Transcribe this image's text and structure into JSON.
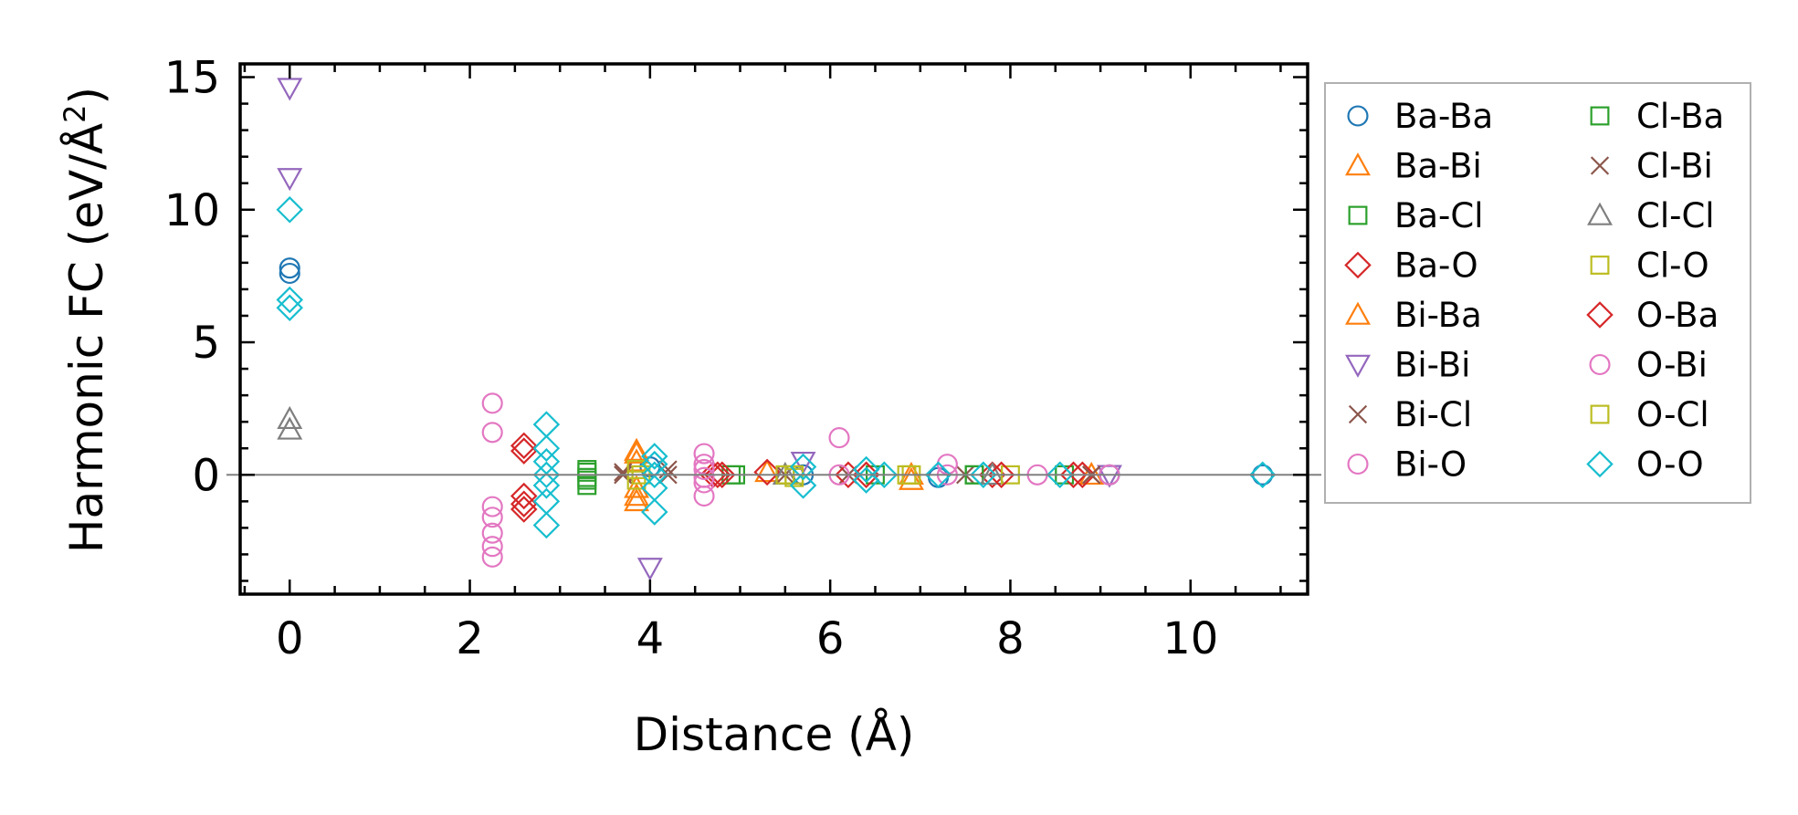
{
  "chart_data": {
    "type": "scatter",
    "xlabel": "Distance (Å)",
    "ylabel_main": "Harmonic FC (eV/Å",
    "ylabel_sup": "2",
    "ylabel_end": ")",
    "xlim": [
      -0.55,
      11.3
    ],
    "ylim": [
      -4.5,
      15.5
    ],
    "xticks": [
      0,
      2,
      4,
      6,
      8,
      10
    ],
    "xtick_labels": [
      "0",
      "2",
      "4",
      "6",
      "8",
      "10"
    ],
    "yticks": [
      0,
      5,
      10,
      15
    ],
    "ytick_labels": [
      "0",
      "5",
      "10",
      "15"
    ],
    "grid": false,
    "zero_line": true,
    "legend_position": "outside-right",
    "series": [
      {
        "name": "Ba-Ba",
        "marker": "circle",
        "color": "#1f77b4",
        "points": [
          [
            0,
            7.8
          ],
          [
            0,
            7.6
          ],
          [
            4.0,
            0.3
          ],
          [
            5.7,
            0.0
          ],
          [
            7.2,
            -0.1
          ],
          [
            9.1,
            0.0
          ],
          [
            10.8,
            0.0
          ]
        ]
      },
      {
        "name": "Ba-Bi",
        "marker": "triangle-up",
        "color": "#ff7f0e",
        "points": [
          [
            3.85,
            0.9
          ],
          [
            3.85,
            0.5
          ],
          [
            3.85,
            -0.5
          ],
          [
            3.85,
            -1.0
          ],
          [
            5.3,
            0.1
          ],
          [
            6.9,
            -0.2
          ],
          [
            8.9,
            0.0
          ]
        ]
      },
      {
        "name": "Ba-Cl",
        "marker": "square",
        "color": "#2ca02c",
        "points": [
          [
            3.3,
            0.2
          ],
          [
            3.3,
            -0.2
          ],
          [
            4.9,
            0.0
          ],
          [
            6.5,
            0.0
          ],
          [
            7.6,
            0.0
          ],
          [
            8.6,
            0.0
          ]
        ]
      },
      {
        "name": "Ba-O",
        "marker": "diamond",
        "color": "#d62728",
        "points": [
          [
            2.6,
            1.1
          ],
          [
            2.6,
            -0.8
          ],
          [
            2.6,
            -1.1
          ],
          [
            4.7,
            0.0
          ],
          [
            5.3,
            0.1
          ],
          [
            6.4,
            0.0
          ],
          [
            7.8,
            0.0
          ],
          [
            8.8,
            0.0
          ]
        ]
      },
      {
        "name": "Bi-Ba",
        "marker": "triangle-up",
        "color": "#ff7f0e",
        "points": [
          [
            3.85,
            0.8
          ],
          [
            3.85,
            -0.8
          ],
          [
            6.9,
            0.0
          ]
        ]
      },
      {
        "name": "Bi-Bi",
        "marker": "triangle-down",
        "color": "#9467bd",
        "points": [
          [
            0,
            14.6
          ],
          [
            0,
            11.2
          ],
          [
            4.0,
            -3.5
          ],
          [
            5.7,
            0.5
          ],
          [
            9.1,
            0.0
          ]
        ]
      },
      {
        "name": "Bi-Cl",
        "marker": "x",
        "color": "#8c564b",
        "points": [
          [
            3.7,
            0.1
          ],
          [
            4.2,
            0.2
          ],
          [
            5.5,
            0.0
          ],
          [
            7.5,
            0.0
          ],
          [
            8.9,
            0.0
          ]
        ]
      },
      {
        "name": "Bi-O",
        "marker": "circle",
        "color": "#e377c2",
        "points": [
          [
            2.25,
            2.7
          ],
          [
            2.25,
            1.6
          ],
          [
            2.25,
            -1.2
          ],
          [
            2.25,
            -1.6
          ],
          [
            2.25,
            -2.2
          ],
          [
            2.25,
            -2.7
          ],
          [
            2.25,
            -3.1
          ],
          [
            4.6,
            0.8
          ],
          [
            4.6,
            0.4
          ],
          [
            4.6,
            -0.3
          ],
          [
            4.6,
            -0.8
          ],
          [
            6.1,
            1.4
          ],
          [
            7.3,
            0.4
          ],
          [
            8.3,
            0.0
          ]
        ]
      },
      {
        "name": "Cl-Ba",
        "marker": "square",
        "color": "#2ca02c",
        "points": [
          [
            3.3,
            0.1
          ],
          [
            3.3,
            -0.1
          ],
          [
            3.3,
            -0.4
          ],
          [
            4.95,
            0.0
          ],
          [
            7.6,
            0.0
          ]
        ]
      },
      {
        "name": "Cl-Bi",
        "marker": "x",
        "color": "#8c564b",
        "points": [
          [
            3.7,
            0.0
          ],
          [
            4.2,
            0.0
          ],
          [
            6.2,
            0.0
          ],
          [
            8.9,
            0.0
          ]
        ]
      },
      {
        "name": "Cl-Cl",
        "marker": "triangle-up",
        "color": "#7f7f7f",
        "points": [
          [
            0,
            2.1
          ],
          [
            0,
            1.7
          ],
          [
            5.5,
            0.0
          ],
          [
            7.8,
            0.0
          ]
        ]
      },
      {
        "name": "Cl-O",
        "marker": "square",
        "color": "#bcbd22",
        "points": [
          [
            3.85,
            0.2
          ],
          [
            3.85,
            -0.2
          ],
          [
            5.5,
            0.0
          ],
          [
            5.6,
            -0.1
          ],
          [
            6.9,
            0.0
          ],
          [
            8.0,
            0.0
          ]
        ]
      },
      {
        "name": "O-Ba",
        "marker": "diamond",
        "color": "#d62728",
        "points": [
          [
            2.6,
            0.9
          ],
          [
            2.6,
            -1.3
          ],
          [
            4.75,
            0.0
          ],
          [
            4.8,
            0.0
          ],
          [
            6.2,
            0.0
          ],
          [
            7.9,
            0.0
          ],
          [
            8.7,
            0.0
          ]
        ]
      },
      {
        "name": "O-Bi",
        "marker": "circle",
        "color": "#e377c2",
        "points": [
          [
            4.6,
            0.2
          ],
          [
            4.6,
            -0.1
          ],
          [
            6.1,
            0.0
          ],
          [
            7.3,
            0.0
          ],
          [
            9.1,
            0.0
          ]
        ]
      },
      {
        "name": "O-Cl",
        "marker": "square",
        "color": "#bcbd22",
        "points": [
          [
            3.9,
            0.0
          ],
          [
            5.6,
            0.0
          ],
          [
            6.85,
            0.0
          ]
        ]
      },
      {
        "name": "O-O",
        "marker": "diamond",
        "color": "#17becf",
        "points": [
          [
            0,
            10.0
          ],
          [
            0,
            6.6
          ],
          [
            0,
            6.3
          ],
          [
            2.85,
            1.9
          ],
          [
            2.85,
            1.0
          ],
          [
            2.85,
            0.5
          ],
          [
            2.85,
            0.0
          ],
          [
            2.85,
            -0.4
          ],
          [
            2.85,
            -1.0
          ],
          [
            2.85,
            -1.9
          ],
          [
            4.05,
            0.7
          ],
          [
            4.05,
            0.4
          ],
          [
            4.05,
            0.0
          ],
          [
            4.05,
            -0.5
          ],
          [
            4.05,
            -1.4
          ],
          [
            5.7,
            0.3
          ],
          [
            5.7,
            -0.4
          ],
          [
            6.4,
            0.2
          ],
          [
            6.4,
            -0.2
          ],
          [
            6.6,
            0.0
          ],
          [
            7.2,
            0.0
          ],
          [
            7.7,
            0.0
          ],
          [
            8.55,
            0.0
          ],
          [
            10.8,
            0.0
          ]
        ]
      }
    ]
  }
}
